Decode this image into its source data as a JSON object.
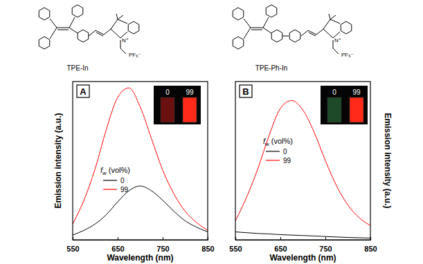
{
  "structures": [
    {
      "name": "TPE-In",
      "cation": "N⁺",
      "counterion": "PF₆⁻"
    },
    {
      "name": "TPE-Ph-In",
      "cation": "N⁺",
      "counterion": "PF₆⁻"
    }
  ],
  "chart_data": [
    {
      "type": "line",
      "panel": "A",
      "x_label": "Wavelength (nm)",
      "y_label": "Emission intensity (a.u.)",
      "x": [
        550,
        575,
        600,
        625,
        650,
        675,
        700,
        725,
        750,
        775,
        800,
        825,
        850
      ],
      "xlim": [
        550,
        850
      ],
      "xticks": [
        550,
        650,
        750,
        850
      ],
      "ylim": [
        0,
        100
      ],
      "tick_labels": "x",
      "legend_title": {
        "text": "f",
        "subscript": "w",
        "suffix": "(vol%)"
      },
      "series": [
        {
          "name": "0",
          "color": "#000000",
          "values": [
            3,
            6,
            10,
            16,
            24,
            31,
            34,
            31,
            25,
            18,
            12,
            8,
            5
          ]
        },
        {
          "name": "99",
          "color": "#ff0000",
          "values": [
            10,
            25,
            45,
            70,
            90,
            96,
            84,
            64,
            44,
            29,
            18,
            11,
            6
          ]
        }
      ],
      "inset": {
        "labels": [
          "0",
          "99"
        ],
        "colors": [
          "#6a1010",
          "#ff2a1a"
        ]
      }
    },
    {
      "type": "line",
      "panel": "B",
      "x_label": "Wavelength (nm)",
      "y_label": "Emission intensity (a.u.)",
      "x": [
        550,
        575,
        600,
        625,
        650,
        675,
        700,
        725,
        750,
        775,
        800,
        825,
        850
      ],
      "xlim": [
        550,
        850
      ],
      "xticks": [
        550,
        650,
        750,
        850
      ],
      "ylim": [
        0,
        100
      ],
      "tick_labels": "x",
      "legend_title": {
        "text": "f",
        "subscript": "w",
        "suffix": "(vol%)"
      },
      "series": [
        {
          "name": "0",
          "color": "#000000",
          "values": [
            5,
            4.5,
            4,
            3.7,
            3.3,
            3,
            2.7,
            2.4,
            2.1,
            1.8,
            1.5,
            1.3,
            1.1
          ]
        },
        {
          "name": "99",
          "color": "#ff0000",
          "values": [
            12,
            27,
            45,
            66,
            83,
            88,
            82,
            68,
            50,
            34,
            22,
            14,
            9
          ]
        }
      ],
      "inset": {
        "labels": [
          "0",
          "99"
        ],
        "colors": [
          "#1f4a2a",
          "#ff2a1a"
        ]
      }
    }
  ]
}
